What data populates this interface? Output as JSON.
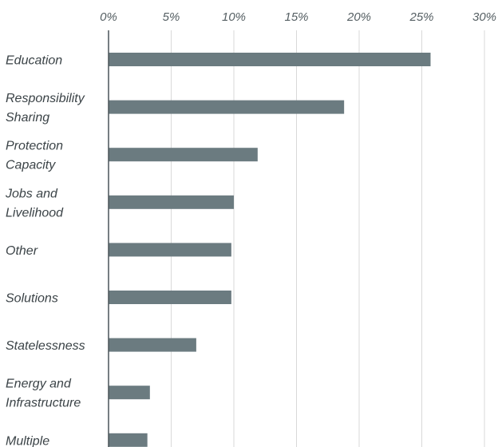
{
  "chart_data": {
    "type": "bar",
    "orientation": "horizontal",
    "title": "",
    "xlabel": "",
    "ylabel": "",
    "xlim": [
      0,
      30
    ],
    "x_ticks": [
      0,
      5,
      10,
      15,
      20,
      25,
      30
    ],
    "x_tick_labels": [
      "0%",
      "5%",
      "10%",
      "15%",
      "20%",
      "25%",
      "30%"
    ],
    "x_axis_position": "top",
    "grid": true,
    "categories": [
      [
        "Education"
      ],
      [
        "Responsibility",
        "Sharing"
      ],
      [
        "Protection",
        "Capacity"
      ],
      [
        "Jobs and",
        "Livelihood"
      ],
      [
        "Other"
      ],
      [
        "Solutions"
      ],
      [
        "Statelessness"
      ],
      [
        "Energy and",
        "Infrastructure"
      ],
      [
        "Multiple"
      ]
    ],
    "values": [
      25.7,
      18.8,
      11.9,
      10.0,
      9.8,
      9.8,
      7.0,
      3.3,
      3.1
    ],
    "bar_color": "#6b7b80",
    "grid_color": "#d9d9d9",
    "axis_color": "#4a5458"
  }
}
